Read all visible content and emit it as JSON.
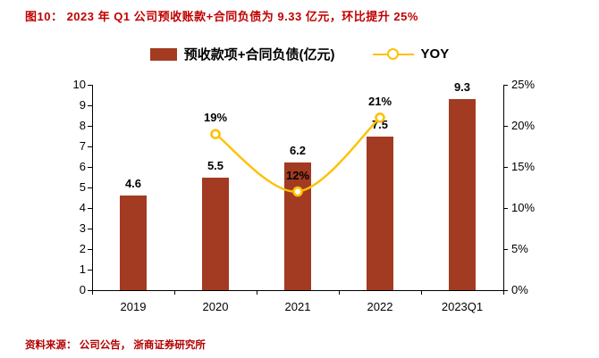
{
  "title": "图10：  2023 年 Q1 公司预收账款+合同负债为 9.33 亿元，环比提升 25%",
  "source": "资料来源：  公司公告，  浙商证券研究所",
  "colors": {
    "bar": "#A23B22",
    "line": "#FFC000",
    "title": "#C00000",
    "source": "#B00000",
    "axis": "#000000"
  },
  "chart_data": {
    "type": "bar",
    "categories": [
      "2019",
      "2020",
      "2021",
      "2022",
      "2023Q1"
    ],
    "series": [
      {
        "name": "预收款项+合同负债(亿元)",
        "type": "bar",
        "axis": "left",
        "values": [
          4.6,
          5.5,
          6.2,
          7.5,
          9.3
        ],
        "labels": [
          "4.6",
          "5.5",
          "6.2",
          "7.5",
          "9.3"
        ]
      },
      {
        "name": "YOY",
        "type": "line",
        "axis": "right",
        "values": [
          null,
          19,
          12,
          21,
          null
        ],
        "labels": [
          "",
          "19%",
          "12%",
          "21%",
          ""
        ]
      }
    ],
    "left_axis": {
      "min": 0,
      "max": 10,
      "ticks": [
        0,
        1,
        2,
        3,
        4,
        5,
        6,
        7,
        8,
        9,
        10
      ]
    },
    "right_axis": {
      "min": 0,
      "max": 25,
      "ticks": [
        "0%",
        "5%",
        "10%",
        "15%",
        "20%",
        "25%"
      ]
    },
    "legend_position": "top",
    "grid": false
  }
}
